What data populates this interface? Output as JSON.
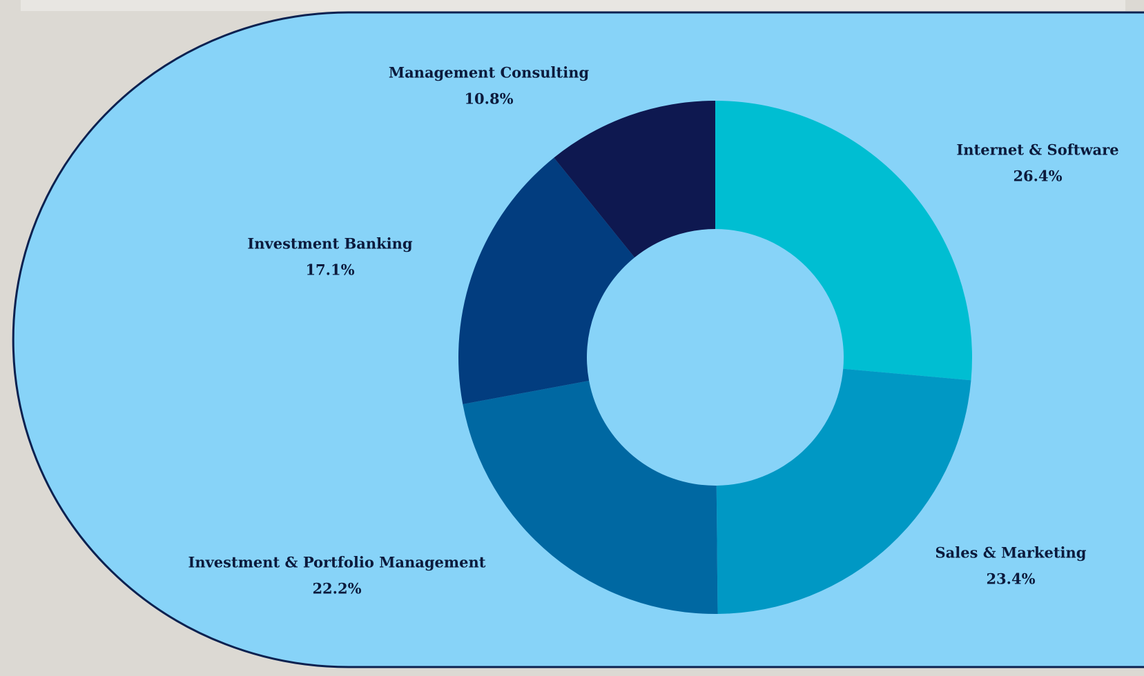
{
  "chart_data": {
    "type": "donut",
    "categories": [
      "Internet & Software",
      "Sales & Marketing",
      "Investment & Portfolio Management",
      "Investment Banking",
      "Management Consulting"
    ],
    "values": [
      26.4,
      23.4,
      22.2,
      17.1,
      10.8
    ],
    "value_labels": [
      "26.4%",
      "23.4%",
      "22.2%",
      "17.1%",
      "10.8%"
    ],
    "colors": [
      "#00bed2",
      "#0098c4",
      "#0068a2",
      "#023d7f",
      "#0e1850"
    ]
  }
}
